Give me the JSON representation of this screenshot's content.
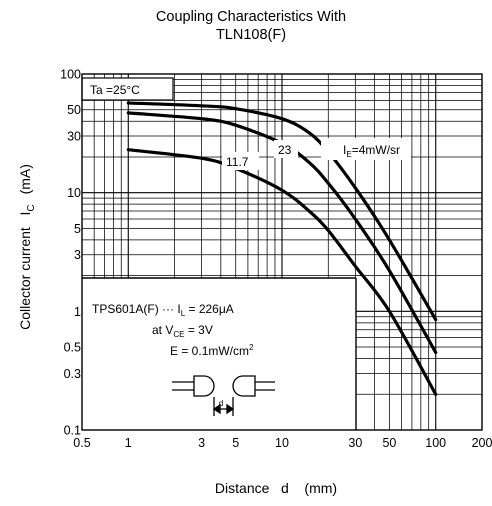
{
  "chart_data": {
    "type": "line",
    "title_lines": [
      "Coupling Characteristics With",
      "TLN108(F)"
    ],
    "xlabel": "Distance   d    (mm)",
    "ylabel": "Collector current   I",
    "ylabel_sub": "C",
    "ylabel_unit": "(mA)",
    "xscale": "log",
    "yscale": "log",
    "xlim": [
      0.5,
      200
    ],
    "ylim": [
      0.1,
      100
    ],
    "xticks": [
      {
        "value": 0.5,
        "label": "0.5"
      },
      {
        "value": 1,
        "label": "1"
      },
      {
        "value": 3,
        "label": "3"
      },
      {
        "value": 5,
        "label": "5"
      },
      {
        "value": 10,
        "label": "10"
      },
      {
        "value": 30,
        "label": "30"
      },
      {
        "value": 50,
        "label": "50"
      },
      {
        "value": 100,
        "label": "100"
      },
      {
        "value": 200,
        "label": "200"
      }
    ],
    "yticks": [
      {
        "value": 0.1,
        "label": "0.1"
      },
      {
        "value": 0.3,
        "label": "0.3"
      },
      {
        "value": 0.5,
        "label": "0.5"
      },
      {
        "value": 1,
        "label": "1"
      },
      {
        "value": 3,
        "label": "3"
      },
      {
        "value": 5,
        "label": "5"
      },
      {
        "value": 10,
        "label": "10"
      },
      {
        "value": 30,
        "label": "30"
      },
      {
        "value": 50,
        "label": "50"
      },
      {
        "value": 100,
        "label": "100"
      }
    ],
    "grid": true,
    "series": [
      {
        "label": "IE=4mW/sr",
        "x": [
          1,
          3,
          5,
          10,
          15,
          20,
          30,
          50,
          100
        ],
        "y": [
          57,
          54,
          51,
          42,
          32,
          22,
          11,
          4,
          0.85
        ]
      },
      {
        "label": "23",
        "x": [
          1,
          3,
          5,
          10,
          15,
          20,
          30,
          50,
          100
        ],
        "y": [
          47,
          42,
          37,
          26,
          18,
          12,
          6,
          2.2,
          0.45
        ]
      },
      {
        "label": "11.7",
        "x": [
          1,
          3,
          5,
          10,
          15,
          20,
          30,
          50,
          100
        ],
        "y": [
          23,
          19.5,
          16,
          10.5,
          7,
          4.8,
          2.4,
          1,
          0.2
        ]
      }
    ],
    "annotations": {
      "ta": "Ta =25°C",
      "curve_labels": {
        "c1a": "I",
        "c1b": "E",
        "c1c": "=4mW/sr",
        "c2": "23",
        "c3": "11.7"
      },
      "conditions": {
        "line1a": "TPS601A(F)  ···  I",
        "line1b": "L",
        "line1c": " = 226",
        "line1mu": "μ",
        "line1d": "A",
        "line2a": "at V",
        "line2b": "CE",
        "line2c": " = 3V",
        "line3a": "E = 0.1mW/cm",
        "line3b": "2"
      },
      "d_label": "d"
    }
  }
}
